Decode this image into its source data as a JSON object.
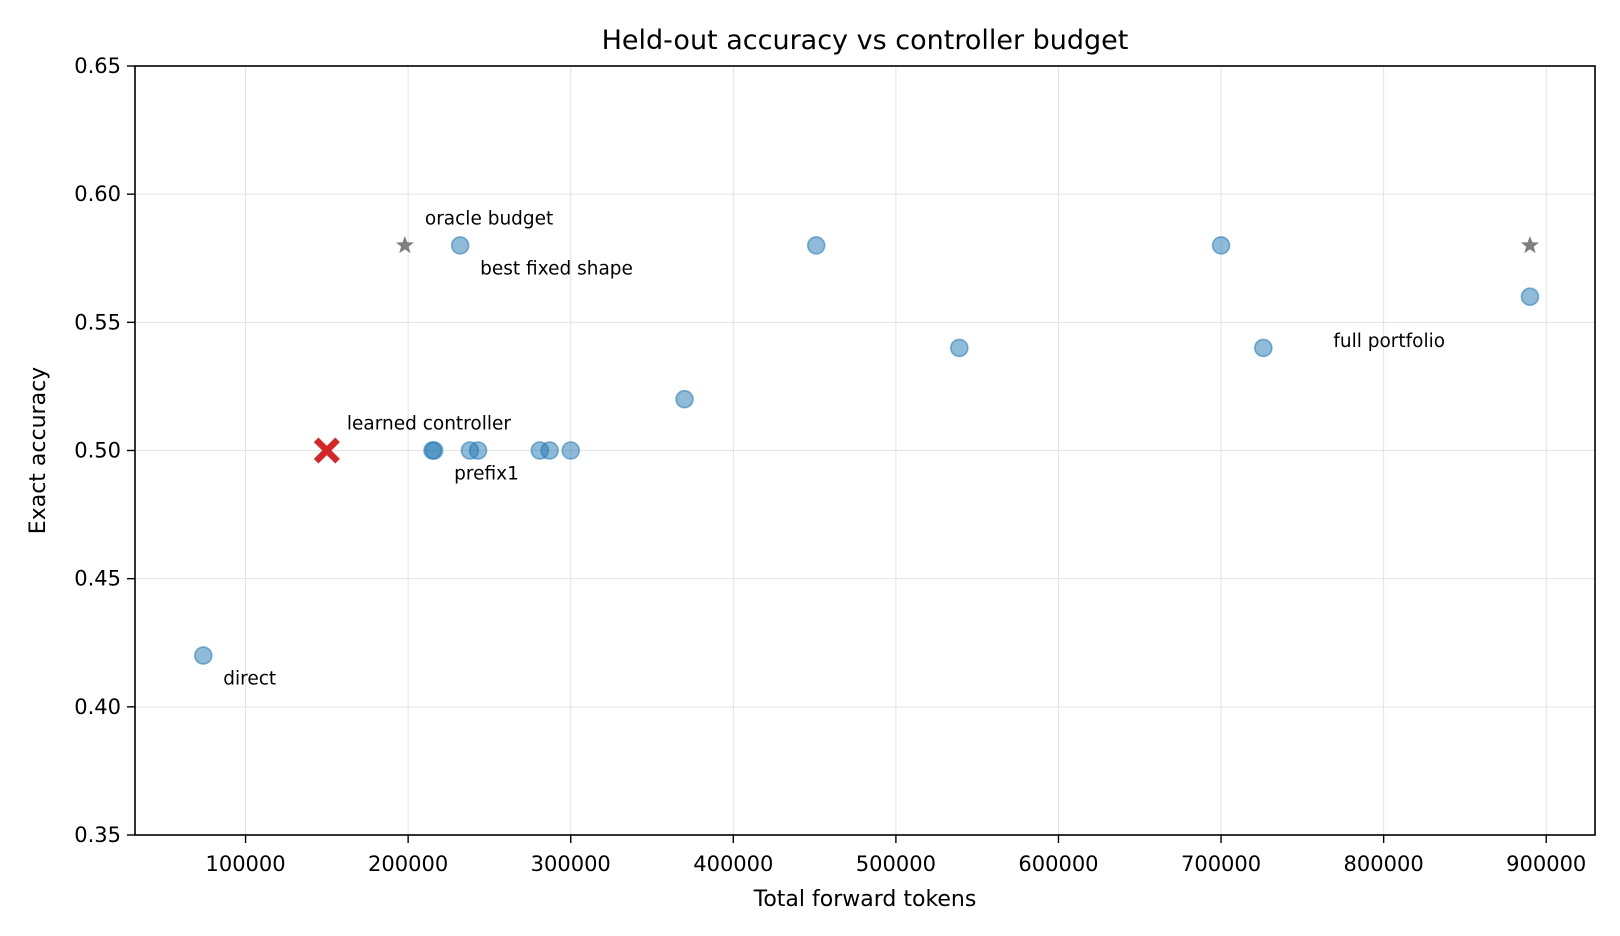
{
  "chart_data": {
    "type": "scatter",
    "title": "Held-out accuracy vs controller budget",
    "xlabel": "Total forward tokens",
    "ylabel": "Exact accuracy",
    "xlim": [
      32000,
      930000
    ],
    "ylim": [
      0.35,
      0.65
    ],
    "xticks": [
      100000,
      200000,
      300000,
      400000,
      500000,
      600000,
      700000,
      800000,
      900000
    ],
    "yticks": [
      0.35,
      0.4,
      0.45,
      0.5,
      0.55,
      0.6,
      0.65
    ],
    "xtick_labels": [
      "100000",
      "200000",
      "300000",
      "400000",
      "500000",
      "600000",
      "700000",
      "800000",
      "900000"
    ],
    "ytick_labels": [
      "0.35",
      "0.40",
      "0.45",
      "0.50",
      "0.55",
      "0.60",
      "0.65"
    ],
    "grid": true,
    "colors": {
      "fixed_shape": "#1f77b4",
      "learned_controller": "#d62728",
      "oracle": "#7f7f7f"
    },
    "series": [
      {
        "marker": "circle",
        "points": [
          {
            "x": 74000,
            "y": 0.42
          },
          {
            "x": 215000,
            "y": 0.5
          },
          {
            "x": 216000,
            "y": 0.5
          },
          {
            "x": 238000,
            "y": 0.5
          },
          {
            "x": 243000,
            "y": 0.5
          },
          {
            "x": 232000,
            "y": 0.58
          },
          {
            "x": 281000,
            "y": 0.5
          },
          {
            "x": 287000,
            "y": 0.5
          },
          {
            "x": 300000,
            "y": 0.5
          },
          {
            "x": 370000,
            "y": 0.52
          },
          {
            "x": 451000,
            "y": 0.58
          },
          {
            "x": 539000,
            "y": 0.54
          },
          {
            "x": 700000,
            "y": 0.58
          },
          {
            "x": 726000,
            "y": 0.54
          },
          {
            "x": 890000,
            "y": 0.56
          }
        ]
      },
      {
        "marker": "x",
        "points": [
          {
            "x": 150000,
            "y": 0.5
          }
        ]
      },
      {
        "marker": "star",
        "points": [
          {
            "x": 198000,
            "y": 0.58
          },
          {
            "x": 890000,
            "y": 0.58
          }
        ]
      }
    ],
    "annotations": [
      {
        "text": "direct",
        "x": 74000,
        "y": 0.42,
        "position": "below-right"
      },
      {
        "text": "learned controller",
        "x": 150000,
        "y": 0.5,
        "position": "above-right"
      },
      {
        "text": "prefix1",
        "x": 216000,
        "y": 0.5,
        "position": "below-right"
      },
      {
        "text": "oracle budget",
        "x": 198000,
        "y": 0.58,
        "position": "above-right"
      },
      {
        "text": "best fixed shape",
        "x": 232000,
        "y": 0.58,
        "position": "below-right"
      },
      {
        "text": "full portfolio",
        "x": 726000,
        "y": 0.54,
        "position": "right"
      }
    ]
  }
}
